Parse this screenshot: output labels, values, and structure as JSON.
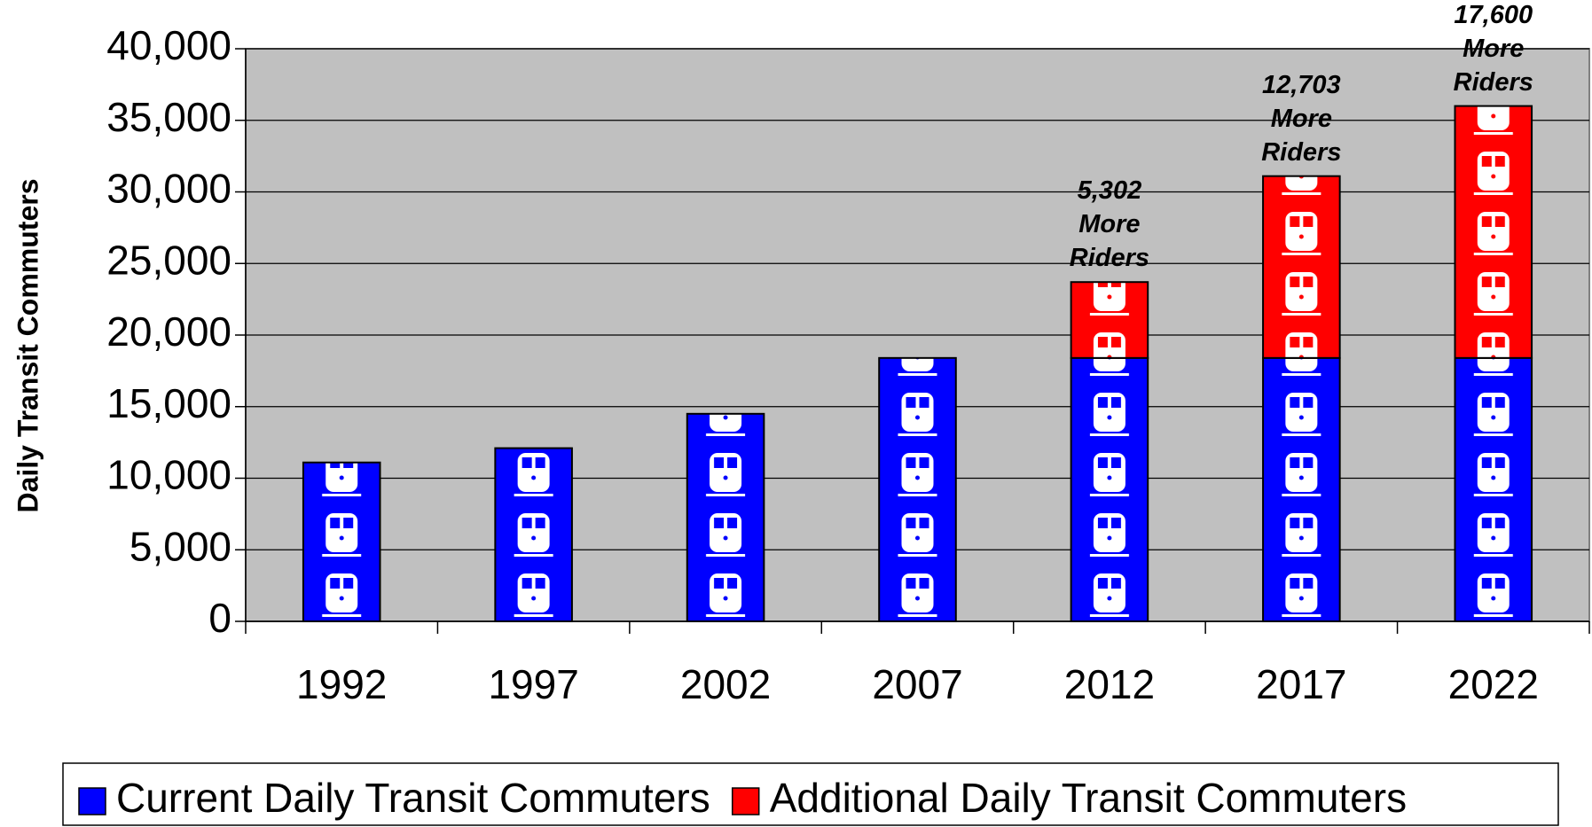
{
  "chart_data": {
    "type": "stacked_bar",
    "y_label": "Daily Transit Commuters",
    "categories": [
      "1992",
      "1997",
      "2002",
      "2007",
      "2012",
      "2017",
      "2022"
    ],
    "series": [
      {
        "name": "Current Daily Transit Commuters",
        "color": "#0000ff",
        "values": [
          11100,
          12100,
          14500,
          18400,
          18400,
          18400,
          18400
        ]
      },
      {
        "name": "Additional Daily Transit Commuters",
        "color": "#ff0000",
        "values": [
          null,
          null,
          null,
          null,
          5302,
          12703,
          17600
        ],
        "value_labels": [
          null,
          null,
          null,
          null,
          "5,302 More Riders",
          "12,703 More Riders",
          "17,600 More Riders"
        ]
      }
    ],
    "ylim": [
      0,
      40000
    ],
    "yticks": [
      {
        "value": 0,
        "label": "0"
      },
      {
        "value": 5000,
        "label": "5,000"
      },
      {
        "value": 10000,
        "label": "10,000"
      },
      {
        "value": 15000,
        "label": "15,000"
      },
      {
        "value": 20000,
        "label": "20,000"
      },
      {
        "value": 25000,
        "label": "25,000"
      },
      {
        "value": 30000,
        "label": "30,000"
      },
      {
        "value": 35000,
        "label": "35,000"
      },
      {
        "value": 40000,
        "label": "40,000"
      }
    ],
    "grid": true,
    "plot_background": "#c0c0c0"
  }
}
